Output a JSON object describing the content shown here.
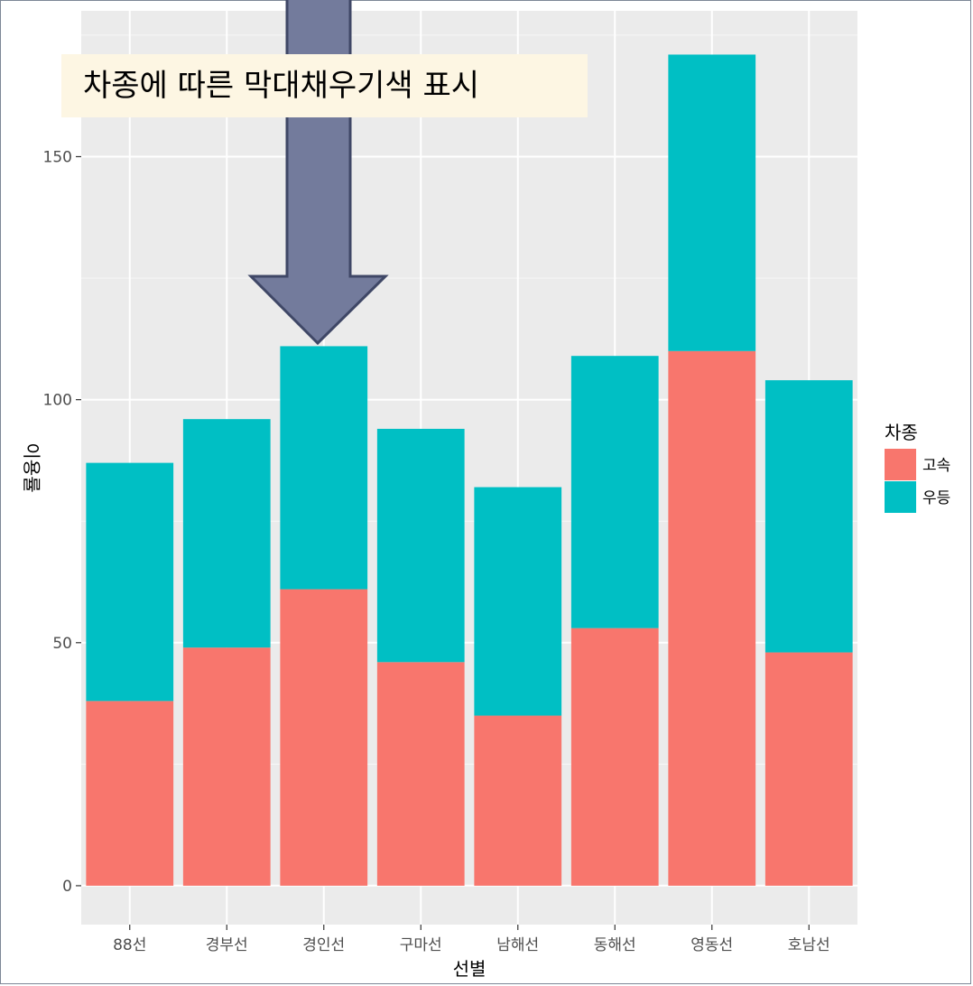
{
  "annotation": {
    "text": "차종에 따른 막대채우기색 표시",
    "arrow_color": "#737b9c",
    "arrow_stroke": "#3f4766",
    "box_color": "#fdf6e3"
  },
  "chart_data": {
    "type": "bar",
    "stacked": true,
    "categories": [
      "88선",
      "경부선",
      "경인선",
      "구마선",
      "남해선",
      "동해선",
      "영동선",
      "호남선"
    ],
    "series": [
      {
        "name": "고속",
        "color": "#f8766d",
        "values": [
          38,
          49,
          61,
          46,
          35,
          53,
          110,
          48
        ]
      },
      {
        "name": "우등",
        "color": "#00bfc4",
        "values": [
          49,
          47,
          50,
          48,
          47,
          56,
          61,
          56
        ]
      }
    ],
    "xlabel": "선별",
    "ylabel": "이용률",
    "ylim": [
      -8,
      180
    ],
    "yticks": [
      0,
      50,
      100,
      150
    ],
    "grid": true,
    "panel_background": "#ebebeb",
    "legend": {
      "title": "차종",
      "position": "right",
      "items": [
        "고속",
        "우등"
      ]
    }
  }
}
